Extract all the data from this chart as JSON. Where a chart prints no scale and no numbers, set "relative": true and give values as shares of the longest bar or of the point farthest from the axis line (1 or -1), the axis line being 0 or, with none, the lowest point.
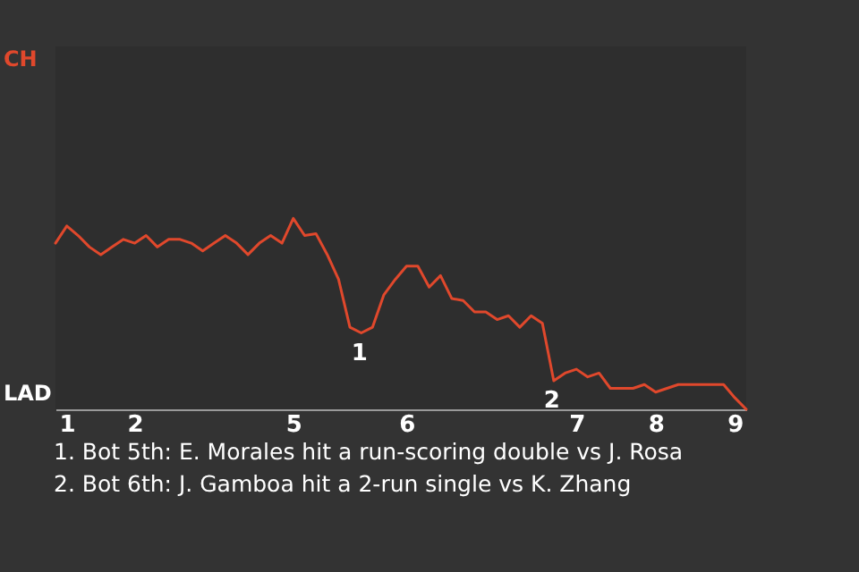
{
  "chart_data": {
    "type": "line",
    "relative": true,
    "categories": [
      null,
      "1",
      null,
      null,
      null,
      null,
      null,
      "2",
      null,
      null,
      null,
      null,
      null,
      null,
      null,
      null,
      null,
      null,
      null,
      null,
      null,
      "5",
      null,
      null,
      null,
      null,
      null,
      null,
      null,
      null,
      null,
      "6",
      null,
      null,
      null,
      null,
      null,
      null,
      null,
      null,
      null,
      null,
      null,
      null,
      null,
      null,
      "7",
      null,
      null,
      null,
      null,
      null,
      null,
      "8",
      null,
      null,
      null,
      null,
      null,
      null,
      "9",
      null
    ],
    "series": [
      {
        "color": "#e0482c",
        "values": [
          0.87,
          0.96,
          0.91,
          0.85,
          0.81,
          0.85,
          0.89,
          0.87,
          0.91,
          0.85,
          0.89,
          0.89,
          0.87,
          0.83,
          0.87,
          0.91,
          0.87,
          0.81,
          0.87,
          0.91,
          0.87,
          1,
          0.91,
          0.92,
          0.81,
          0.68,
          0.43,
          0.4,
          0.43,
          0.6,
          0.68,
          0.75,
          0.75,
          0.64,
          0.7,
          0.58,
          0.57,
          0.51,
          0.51,
          0.47,
          0.49,
          0.43,
          0.49,
          0.45,
          0.15,
          0.19,
          0.21,
          0.17,
          0.19,
          0.11,
          0.11,
          0.11,
          0.13,
          0.09,
          0.11,
          0.13,
          0.13,
          0.13,
          0.13,
          0.13,
          0.06,
          0
        ]
      }
    ],
    "annotations": [
      "CH",
      "LAD",
      {
        "text": "1",
        "y": 0.4
      },
      {
        "text": "2",
        "y": 0.15
      },
      "1. Bot 5th: E. Morales hit a run-scoring double vs J. Rosa",
      "2. Bot 6th: J. Gamboa hit a 2-run single vs K. Zhang"
    ]
  }
}
